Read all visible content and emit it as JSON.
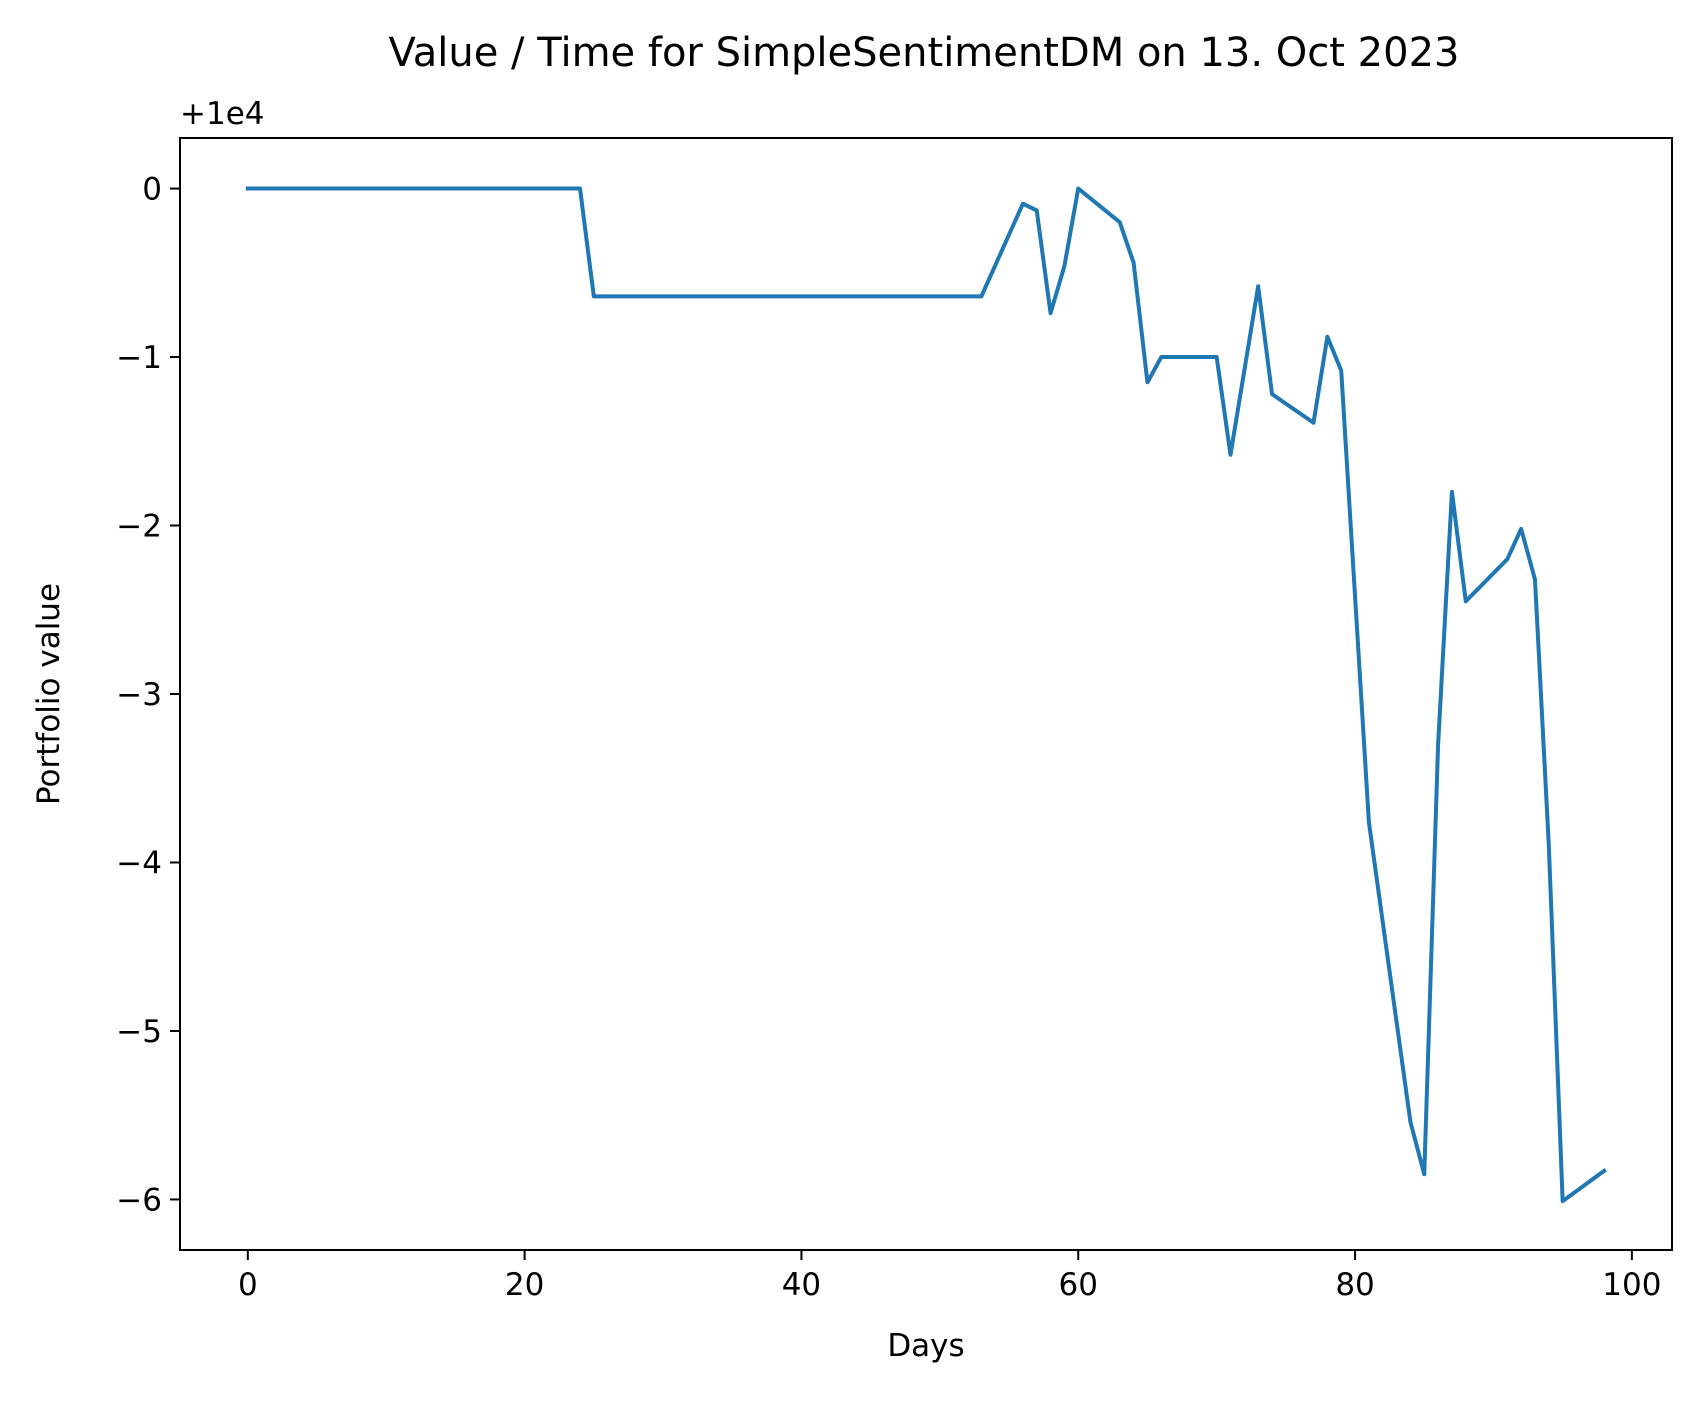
{
  "chart_data": {
    "type": "line",
    "title": "Value / Time for SimpleSentimentDM on 13. Oct 2023",
    "xlabel": "Days",
    "ylabel": "Portfolio value",
    "offset_label": "+1e4",
    "xlim": [
      -4.9,
      102.9
    ],
    "ylim": [
      -6.3,
      0.3
    ],
    "xticks": [
      {
        "value": 0,
        "label": "0"
      },
      {
        "value": 20,
        "label": "20"
      },
      {
        "value": 40,
        "label": "40"
      },
      {
        "value": 60,
        "label": "60"
      },
      {
        "value": 80,
        "label": "80"
      },
      {
        "value": 100,
        "label": "100"
      }
    ],
    "yticks": [
      {
        "value": 0,
        "label": "0"
      },
      {
        "value": -1,
        "label": "−1"
      },
      {
        "value": -2,
        "label": "−2"
      },
      {
        "value": -3,
        "label": "−3"
      },
      {
        "value": -4,
        "label": "−4"
      },
      {
        "value": -5,
        "label": "−5"
      },
      {
        "value": -6,
        "label": "−6"
      }
    ],
    "grid": false,
    "line_color": "#1f77b4",
    "series": [
      {
        "x": [
          0,
          24,
          25,
          53,
          56,
          57,
          58,
          59,
          60,
          63,
          64,
          65,
          66,
          70,
          71,
          73,
          74,
          77,
          78,
          79,
          81,
          84,
          85,
          86,
          87,
          88,
          91,
          92,
          93,
          94,
          95,
          98
        ],
        "y": [
          0,
          0,
          -0.64,
          -0.64,
          -0.09,
          -0.13,
          -0.74,
          -0.46,
          0,
          -0.2,
          -0.44,
          -1.15,
          -1.0,
          -1.0,
          -1.58,
          -0.58,
          -1.22,
          -1.39,
          -0.88,
          -1.08,
          -3.76,
          -5.54,
          -5.85,
          -3.3,
          -1.8,
          -2.45,
          -2.2,
          -2.02,
          -2.32,
          -3.9,
          -6.01,
          -5.83
        ]
      }
    ]
  }
}
